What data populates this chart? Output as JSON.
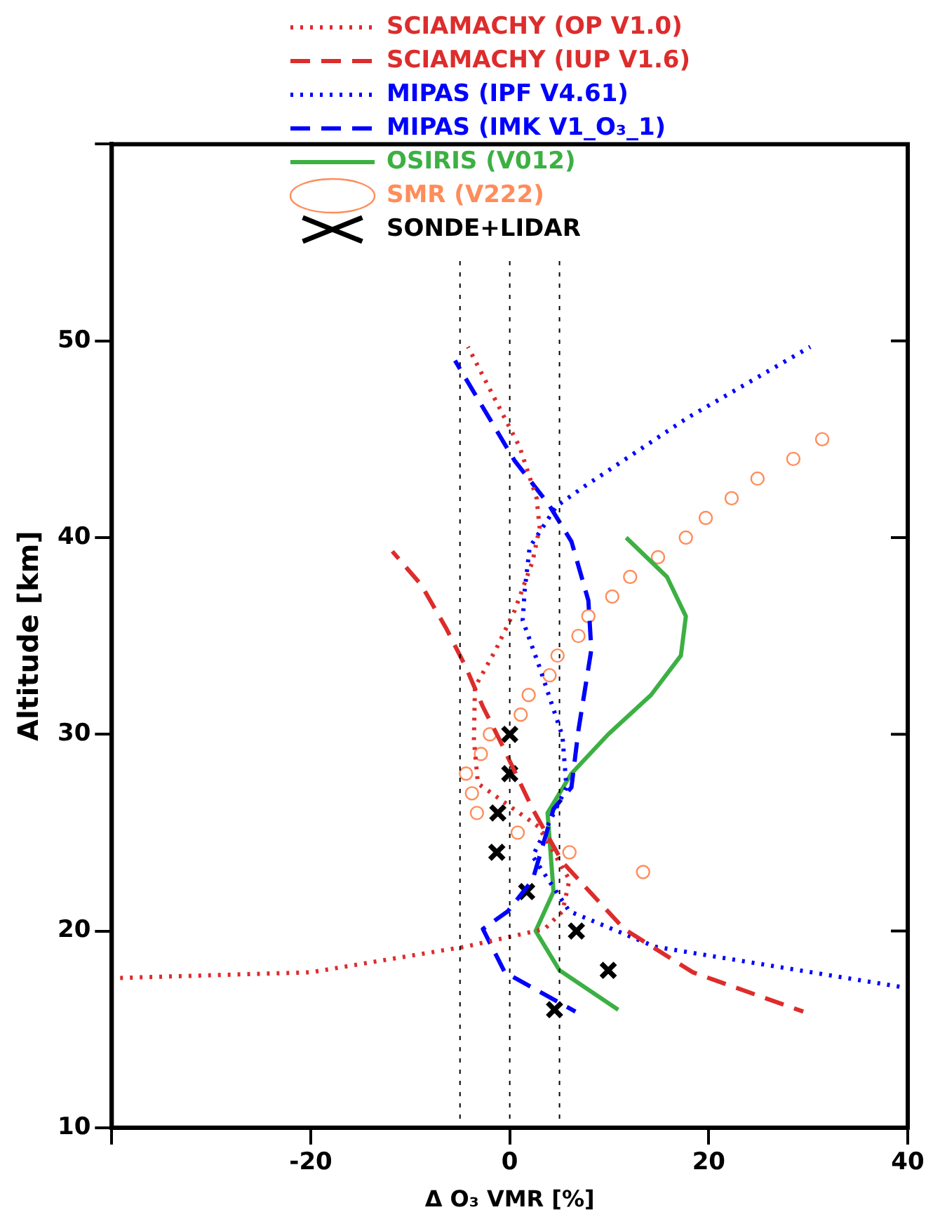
{
  "chart_data": {
    "type": "line",
    "xlabel": "Δ O₃ VMR [%]",
    "ylabel": "Altitude [km]",
    "xlim": [
      -40,
      40
    ],
    "xticks": [
      {
        "value": -40,
        "label": null
      },
      -20,
      0,
      20,
      40
    ],
    "ylim": [
      10,
      60
    ],
    "yticks": [
      10,
      20,
      30,
      40,
      50,
      {
        "value": 60,
        "label": null
      }
    ],
    "grid": false,
    "legend": "top",
    "ref_lines": [
      {
        "axis": "x",
        "value": -5,
        "color": "#000000",
        "line_style": "dotted"
      },
      {
        "axis": "x",
        "value": 0,
        "color": "#000000",
        "line_style": "dotted"
      },
      {
        "axis": "x",
        "value": 5,
        "color": "#000000",
        "line_style": "dotted"
      }
    ],
    "series": [
      {
        "name": "SCIAMACHY (OP V1.0)",
        "type": "line",
        "color": "#dd2c2c",
        "line_style": "dotted",
        "marker": "none",
        "x": [
          -40,
          -20,
          -4.5,
          3.5,
          5.3,
          6,
          2.9,
          -3.2,
          -3.6,
          -3.5,
          -1.4,
          0.5,
          2.3,
          3,
          2.7,
          1,
          -4.2
        ],
        "values": [
          17.6,
          17.9,
          19.2,
          20.1,
          21,
          22.6,
          25.3,
          27.5,
          29.7,
          32.4,
          34.3,
          36.3,
          38.8,
          40.5,
          42,
          44.6,
          49.7
        ]
      },
      {
        "name": "SCIAMACHY (IUP V1.6)",
        "type": "line",
        "color": "#dd2c2c",
        "line_style": "dashed",
        "marker": "none",
        "x": [
          -11.8,
          -8.9,
          -6.4,
          -4.4,
          -2.7,
          -1,
          2.3,
          5.3,
          11.5,
          18.4,
          29.5
        ],
        "values": [
          39.3,
          37.6,
          35.4,
          33.4,
          31.4,
          29.7,
          26.2,
          23.5,
          20.1,
          17.9,
          15.9
        ]
      },
      {
        "name": "MIPAS (IPF V4.61)",
        "type": "line",
        "color": "#0000ff",
        "line_style": "dotted",
        "marker": "none",
        "x": [
          30.2,
          17.9,
          7.5,
          4.7,
          2,
          1.5,
          1.3,
          3,
          5.3,
          5.7,
          2.3,
          6,
          14.6,
          40
        ],
        "values": [
          49.7,
          46.1,
          42.6,
          41.6,
          39.5,
          37.3,
          35.8,
          33.4,
          29.9,
          27.3,
          23.8,
          21,
          19.2,
          17.1
        ]
      },
      {
        "name": "MIPAS (IMK V1_O₃_1)",
        "type": "line",
        "color": "#0000ff",
        "line_style": "dashed",
        "marker": "none",
        "x": [
          -5.5,
          0.5,
          3.9,
          6.2,
          7.9,
          8.2,
          6.9,
          6.2,
          4.4,
          2.3,
          -0.2,
          -2.7,
          -0.5,
          6.6
        ],
        "values": [
          49,
          43.9,
          41.7,
          39.8,
          36.8,
          34.3,
          30.2,
          27.3,
          26.2,
          22.6,
          21,
          20.1,
          17.9,
          15.9
        ]
      },
      {
        "name": "OSIRIS (V012)",
        "type": "line",
        "color": "#3cb043",
        "line_style": "solid",
        "marker": "none",
        "x": [
          11.7,
          15.8,
          17.7,
          17.2,
          14.2,
          9.9,
          6.2,
          3.8,
          4.4,
          2.6,
          5,
          10.9
        ],
        "values": [
          40,
          38,
          36,
          34,
          32,
          30,
          28,
          26,
          22,
          20,
          18,
          16
        ]
      },
      {
        "name": "SMR (V222)",
        "type": "scatter",
        "color": "#ff8c5a",
        "marker": "circle",
        "x": [
          31.4,
          28.5,
          24.9,
          22.3,
          19.7,
          17.7,
          14.9,
          12.1,
          10.3,
          7.9,
          6.9,
          4.8,
          4,
          1.9,
          1.1,
          -2,
          -2.9,
          -4.4,
          -3.8,
          -3.3,
          0.8,
          6,
          13.4
        ],
        "values": [
          45,
          44,
          43,
          42,
          41,
          40,
          39,
          38,
          37,
          36,
          35,
          34,
          33,
          32,
          31,
          30,
          29,
          28,
          27,
          26,
          25,
          24,
          23
        ]
      },
      {
        "name": "SONDE+LIDAR",
        "type": "scatter",
        "color": "#000000",
        "marker": "cross",
        "x": [
          0,
          0,
          -1.2,
          -1.3,
          1.7,
          6.7,
          9.9,
          4.5
        ],
        "values": [
          30,
          28,
          26,
          24,
          22,
          20,
          18,
          16
        ]
      }
    ]
  }
}
